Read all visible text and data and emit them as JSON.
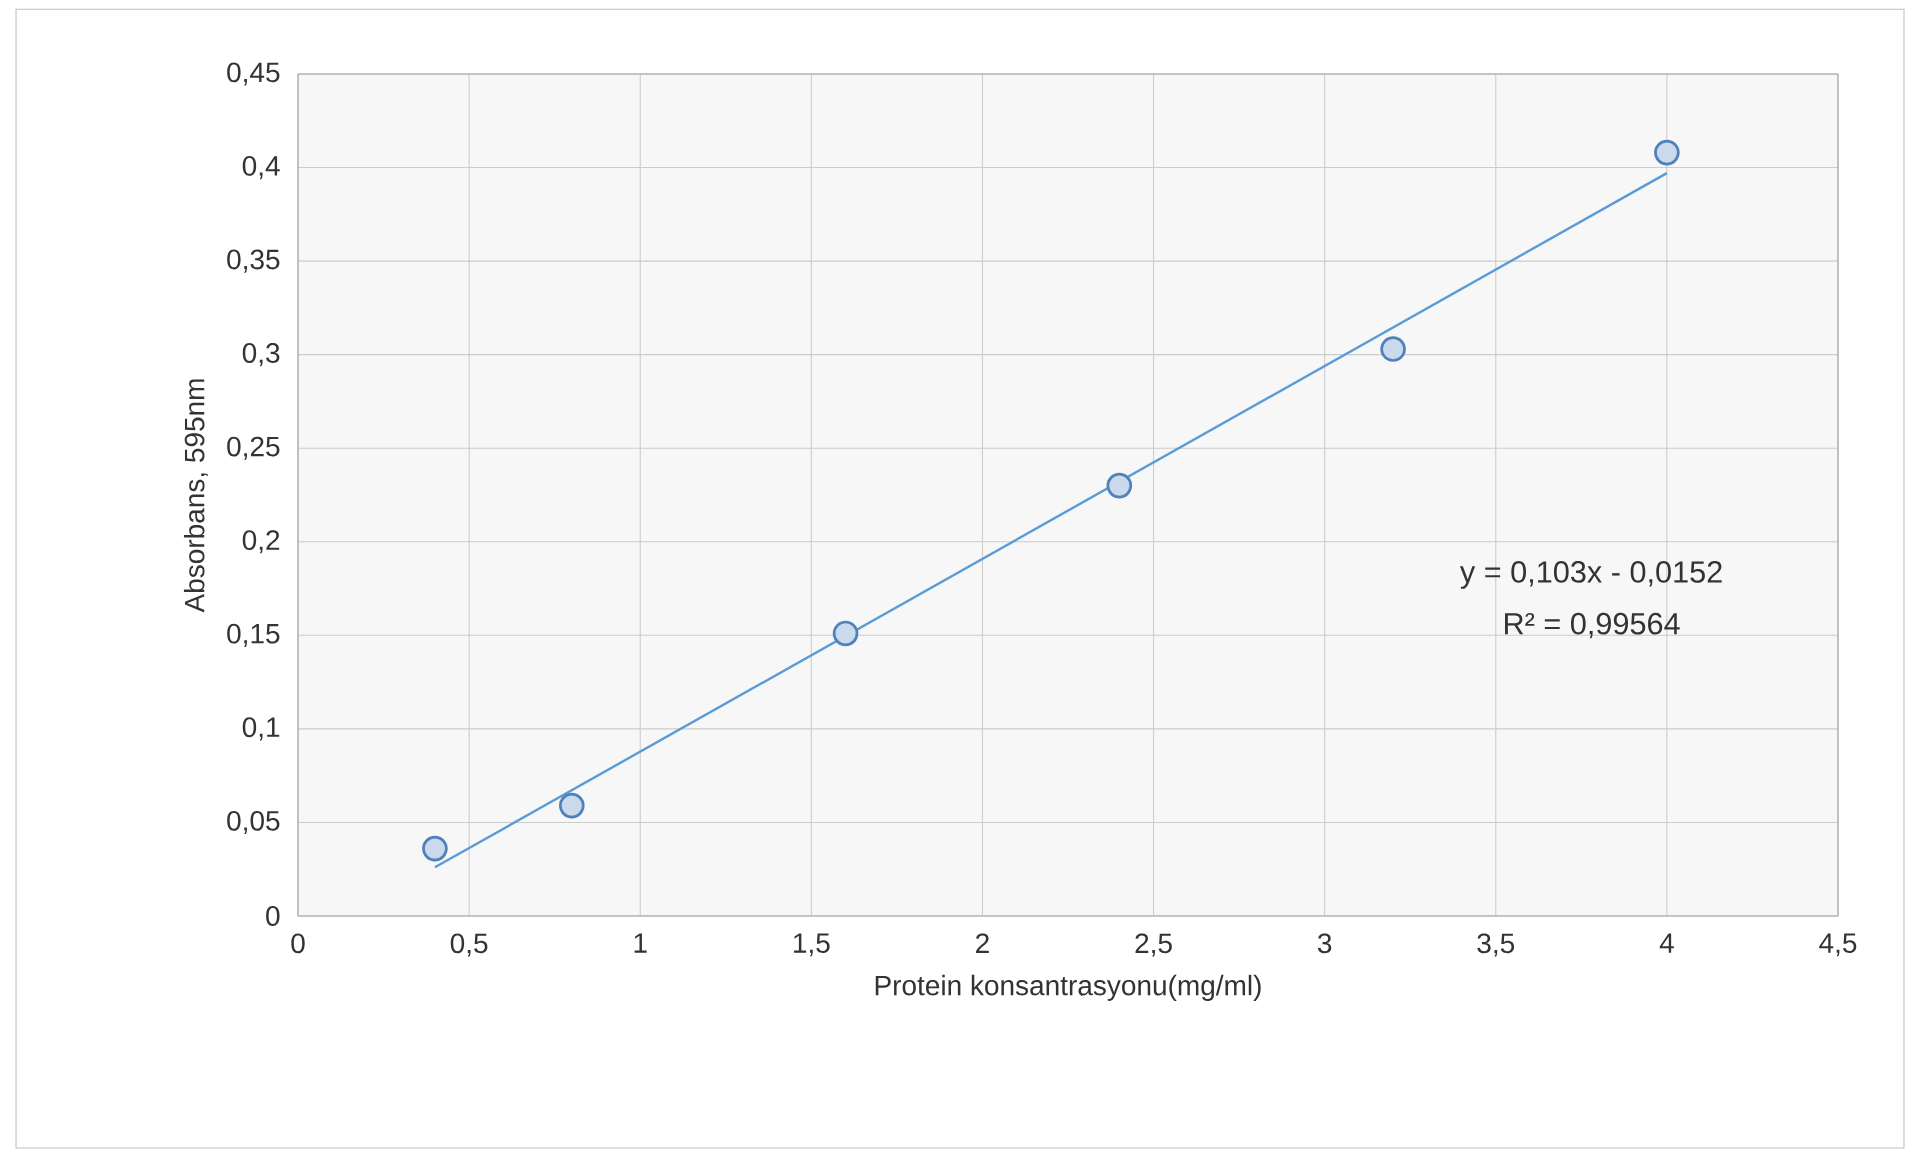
{
  "chart_data": {
    "type": "scatter",
    "xlabel": "Protein konsantrasyonu(mg/ml)",
    "ylabel": "Absorbans, 595nm",
    "annotations": [
      "y = 0,103x - 0,0152",
      "R² = 0,99564"
    ],
    "series": [
      {
        "color": "#4f81bd",
        "x": [
          0.4,
          0.8,
          1.6,
          2.4,
          3.2,
          4.0
        ],
        "values": [
          0.036,
          0.059,
          0.151,
          0.23,
          0.303,
          0.408
        ]
      },
      {
        "type": "line",
        "color": "#5b9bd5",
        "marker": "none",
        "x": [
          0.4,
          4.0
        ],
        "values": [
          0.026,
          0.397
        ]
      }
    ],
    "xlim": [
      0,
      4.5
    ],
    "ylim": [
      0,
      0.45
    ],
    "xticks": [
      0,
      {
        "value": 0.5,
        "label": "0,5"
      },
      1,
      {
        "value": 1.5,
        "label": "1,5"
      },
      2,
      {
        "value": 2.5,
        "label": "2,5"
      },
      3,
      {
        "value": 3.5,
        "label": "3,5"
      },
      4,
      {
        "value": 4.5,
        "label": "4,5"
      }
    ],
    "yticks": [
      0,
      {
        "value": 0.05,
        "label": "0,05"
      },
      {
        "value": 0.1,
        "label": "0,1"
      },
      {
        "value": 0.15,
        "label": "0,15"
      },
      {
        "value": 0.2,
        "label": "0,2"
      },
      {
        "value": 0.25,
        "label": "0,25"
      },
      {
        "value": 0.3,
        "label": "0,3"
      },
      {
        "value": 0.35,
        "label": "0,35"
      },
      {
        "value": 0.4,
        "label": "0,4"
      },
      {
        "value": 0.45,
        "label": "0,45"
      }
    ],
    "grid": true,
    "marker": "circle"
  }
}
